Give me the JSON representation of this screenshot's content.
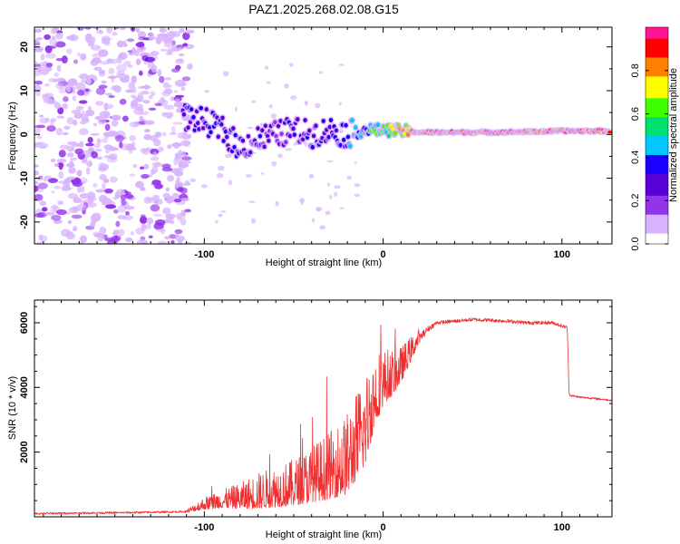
{
  "chart_data": [
    {
      "type": "heatmap",
      "title": "PAZ1.2025.268.02.08.G15",
      "xlabel": "Height of straight line (km)",
      "ylabel": "Frequency (Hz)",
      "xlim": [
        -195,
        128
      ],
      "ylim": [
        -25,
        24.5
      ],
      "xticks": [
        -100,
        0,
        100
      ],
      "yticks": [
        -20,
        -10,
        0,
        10,
        20
      ],
      "colorbar": {
        "label": "Normalized spectral amplitude",
        "range": [
          0,
          1
        ],
        "ticks": [
          "0.0",
          "0.2",
          "0.4",
          "0.6",
          "0.8"
        ],
        "tick_values": [
          0.0,
          0.2,
          0.4,
          0.6,
          0.8
        ],
        "colormap": [
          "#ffffff",
          "#d8b4fe",
          "#9333ea",
          "#5a00d8",
          "#1a00ff",
          "#00c8ff",
          "#00e070",
          "#40ff00",
          "#ffff00",
          "#ff7f00",
          "#ff0000",
          "#ff1493"
        ]
      },
      "signal_track": {
        "description": "dominant frequency ridge",
        "height_km": [
          -110,
          -100,
          -90,
          -80,
          -70,
          -60,
          -50,
          -40,
          -30,
          -20,
          -10,
          0,
          10,
          20,
          40,
          60,
          80,
          100,
          125
        ],
        "frequency_hz": [
          4,
          3,
          1,
          -3,
          -1,
          0,
          1,
          0,
          1,
          0,
          1,
          1,
          0.8,
          0.5,
          0.5,
          0.5,
          0.6,
          0.8,
          0.8
        ],
        "amplitude": [
          0.3,
          0.3,
          0.35,
          0.3,
          0.3,
          0.25,
          0.3,
          0.3,
          0.3,
          0.4,
          0.5,
          0.6,
          0.75,
          0.9,
          0.95,
          0.95,
          0.9,
          0.95,
          0.9
        ]
      }
    },
    {
      "type": "line",
      "xlabel": "Height of straight line (km)",
      "ylabel": "SNR (10 * v/v)",
      "xlim": [
        -195,
        128
      ],
      "ylim": [
        0,
        6700
      ],
      "xticks": [
        -100,
        0,
        100
      ],
      "yticks": [
        2000,
        4000,
        6000
      ],
      "series": [
        {
          "name": "SNR",
          "color": "#f03030",
          "x": [
            -195,
            -180,
            -160,
            -140,
            -120,
            -110,
            -100,
            -90,
            -80,
            -70,
            -60,
            -50,
            -40,
            -30,
            -20,
            -15,
            -10,
            -5,
            0,
            5,
            10,
            15,
            20,
            25,
            30,
            40,
            50,
            60,
            70,
            80,
            90,
            95,
            100,
            103,
            104,
            105,
            110,
            120,
            128
          ],
          "y": [
            100,
            110,
            120,
            130,
            150,
            160,
            350,
            450,
            500,
            600,
            700,
            800,
            1000,
            1200,
            1500,
            2000,
            2500,
            3500,
            4000,
            4200,
            4500,
            5000,
            5500,
            5800,
            6000,
            6050,
            6100,
            6080,
            6050,
            6000,
            6000,
            6000,
            5900,
            5850,
            3800,
            3750,
            3700,
            3650,
            3600
          ],
          "noise_amplitude": [
            60,
            60,
            60,
            60,
            60,
            60,
            250,
            350,
            500,
            700,
            800,
            900,
            1100,
            1300,
            1600,
            1700,
            1800,
            1500,
            1100,
            900,
            700,
            500,
            300,
            200,
            120,
            110,
            110,
            110,
            110,
            110,
            110,
            110,
            110,
            110,
            80,
            60,
            60,
            60,
            60
          ]
        }
      ]
    }
  ]
}
